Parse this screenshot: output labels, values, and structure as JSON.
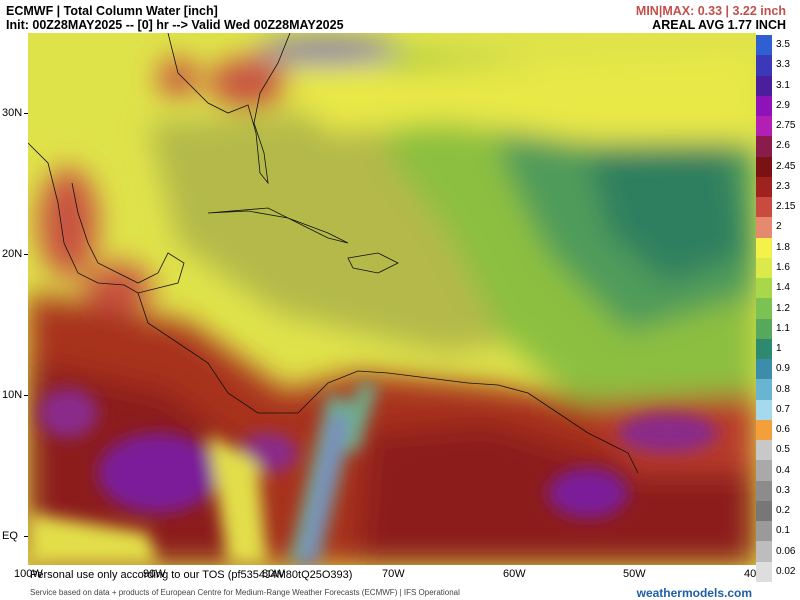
{
  "header": {
    "title": "ECMWF | Total Column Water [inch]",
    "init": "Init: 00Z28MAY2025 -- [0] hr --> Valid Wed 00Z28MAY2025",
    "minmax": "MIN|MAX: 0.33 | 3.22 inch",
    "areal": "AREAL AVG 1.77 INCH"
  },
  "colors": {
    "minmax": "#c0504d",
    "brand": "#1f5fa8"
  },
  "map": {
    "lat_labels": [
      "30N",
      "20N",
      "10N",
      "EQ"
    ],
    "lon_labels": [
      "100W",
      "90W",
      "80W",
      "70W",
      "60W",
      "50W",
      "40"
    ]
  },
  "colorbar": {
    "labels": [
      "3.5",
      "3.3",
      "3.1",
      "2.9",
      "2.75",
      "2.6",
      "2.45",
      "2.3",
      "2.15",
      "2",
      "1.8",
      "1.6",
      "1.4",
      "1.2",
      "1.1",
      "1",
      "0.9",
      "0.8",
      "0.7",
      "0.6",
      "0.5",
      "0.4",
      "0.3",
      "0.2",
      "0.1",
      "0.06",
      "0.02"
    ],
    "colors": [
      "#2f5fd0",
      "#3a3ab8",
      "#4b1f9c",
      "#8e12b8",
      "#b21fb5",
      "#8a1c4c",
      "#7a1114",
      "#a0221f",
      "#c94a3e",
      "#e58a6f",
      "#f4f24a",
      "#dce94a",
      "#a8d84a",
      "#7cc253",
      "#56a85c",
      "#2e8a6f",
      "#3b8dab",
      "#68b4d1",
      "#a6d9ec",
      "#f4a03a",
      "#c8c8c8",
      "#a9a9a9",
      "#8c8c8c",
      "#777777",
      "#9a9a9a",
      "#bdbdbd",
      "#dedede"
    ]
  },
  "footer": {
    "tos": "Personal use only according to our TOS (pf5354J4M80tQ25O393)",
    "credit": "Service based on data + products of European Centre for Medium-Range Weather Forecasts (ECMWF) | IFS Operational",
    "brand": "weathermodels.com"
  }
}
